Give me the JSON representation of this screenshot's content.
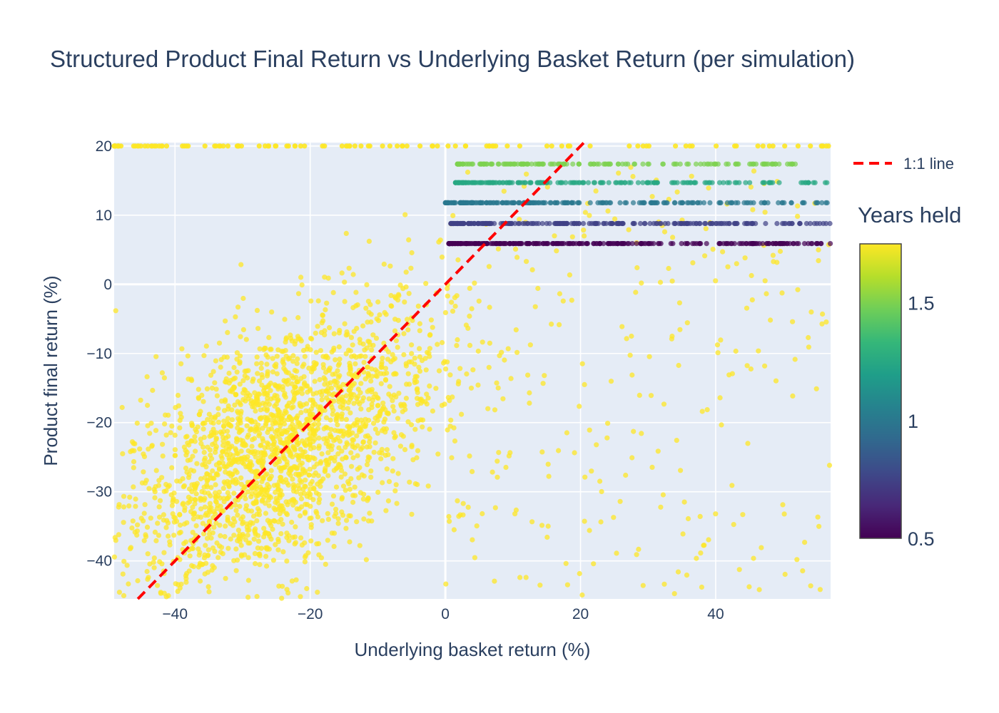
{
  "chart_data": {
    "type": "scatter",
    "title": "Structured Product Final Return vs Underlying Basket Return (per simulation)",
    "xlabel": "Underlying basket return (%)",
    "ylabel": "Product final return (%)",
    "xlim": [
      -49,
      57
    ],
    "ylim": [
      -45.5,
      20.5
    ],
    "x_ticks": [
      -40,
      -20,
      0,
      20,
      40
    ],
    "y_ticks": [
      -40,
      -30,
      -20,
      -10,
      0,
      10,
      20
    ],
    "grid": true,
    "plot_background": "#e5ecf6",
    "colorscale": "Viridis",
    "colorbar": {
      "title": "Years held",
      "range": [
        0.5,
        1.75
      ],
      "ticks": [
        0.5,
        1,
        1.5
      ]
    },
    "legend": {
      "position": "top-right",
      "entries": [
        {
          "name": "1:1 line",
          "style": "dashed",
          "color": "#ff0000"
        }
      ]
    },
    "reference_line": {
      "name": "1:1 line",
      "slope": 1,
      "intercept": 0,
      "color": "#ff0000",
      "dash": "dashed"
    },
    "series": [
      {
        "years_held": 0.5,
        "y": 5.9,
        "x_range": [
          0.5,
          57
        ],
        "description_count": 260
      },
      {
        "years_held": 0.75,
        "y": 8.8,
        "x_range": [
          0.8,
          57
        ],
        "description_count": 230
      },
      {
        "years_held": 1.0,
        "y": 11.8,
        "x_range": [
          0.0,
          57
        ],
        "description_count": 200
      },
      {
        "years_held": 1.25,
        "y": 14.7,
        "x_range": [
          1.5,
          57
        ],
        "description_count": 180
      },
      {
        "years_held": 1.5,
        "y": 17.4,
        "x_range": [
          1.8,
          54
        ],
        "description_count": 150
      },
      {
        "years_held": 1.75,
        "y": 20.0,
        "x_range": [
          -49,
          57
        ],
        "description_count": 120,
        "note_cap": true
      },
      {
        "years_held": 1.75,
        "cloud": true,
        "cloud_params": {
          "main_center": [
            -25,
            -24
          ],
          "main_spread": [
            12,
            9
          ],
          "main_count": 2200,
          "slope_fit": 0.5,
          "upper_cap": 20
        }
      }
    ]
  }
}
